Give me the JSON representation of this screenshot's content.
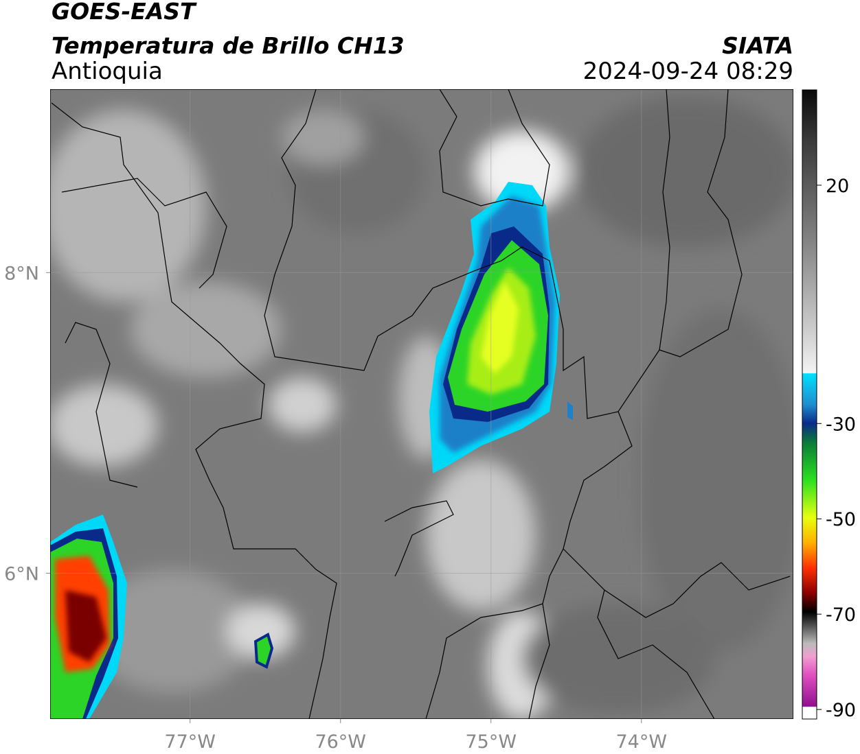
{
  "header": {
    "satellite": "GOES-EAST",
    "product": "Temperatura de Brillo CH13",
    "region": "Antioquia",
    "agency": "SIATA",
    "datetime": "2024-09-24 08:29"
  },
  "map": {
    "xlim": [
      -77.93,
      -72.99
    ],
    "ylim": [
      5.03,
      9.22
    ],
    "xticks": [
      {
        "value": -77,
        "label": "77°W"
      },
      {
        "value": -76,
        "label": "76°W"
      },
      {
        "value": -75,
        "label": "75°W"
      },
      {
        "value": -74,
        "label": "74°W"
      }
    ],
    "yticks": [
      {
        "value": 8,
        "label": "8°N"
      },
      {
        "value": 6,
        "label": "6°N"
      }
    ],
    "grid": true
  },
  "colorbar": {
    "lim": [
      -92,
      40
    ],
    "ticks": [
      20,
      -30,
      -50,
      -70,
      -90
    ]
  }
}
